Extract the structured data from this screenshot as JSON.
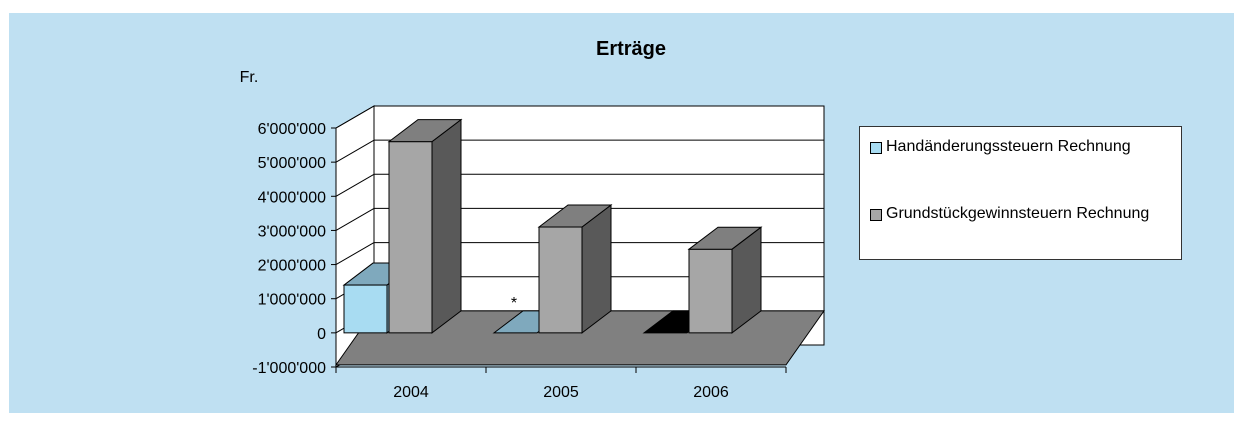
{
  "chart_data": {
    "type": "bar",
    "title": "Erträge",
    "ylabel": "Fr.",
    "xlabel": "",
    "categories": [
      "2004",
      "2005",
      "2006"
    ],
    "series": [
      {
        "name": "Handänderungssteuern Rechnung",
        "values": [
          1400000,
          0,
          0
        ],
        "color": "#a8dcf2"
      },
      {
        "name": "Grundstückgewinnsteuern Rechnung",
        "values": [
          5600000,
          3100000,
          2450000
        ],
        "color": "#a6a6a6"
      }
    ],
    "ylim": [
      -1000000,
      6000000
    ],
    "yticks": [
      {
        "value": 6000000,
        "label": "6'000'000"
      },
      {
        "value": 5000000,
        "label": "5'000'000"
      },
      {
        "value": 4000000,
        "label": "4'000'000"
      },
      {
        "value": 3000000,
        "label": "3'000'000"
      },
      {
        "value": 2000000,
        "label": "2'000'000"
      },
      {
        "value": 1000000,
        "label": "1'000'000"
      },
      {
        "value": 0,
        "label": "0"
      },
      {
        "value": -1000000,
        "label": "-1'000'000"
      }
    ],
    "annotations": [
      {
        "category": "2005",
        "text": "*"
      }
    ],
    "grid": true,
    "legend": "right"
  }
}
